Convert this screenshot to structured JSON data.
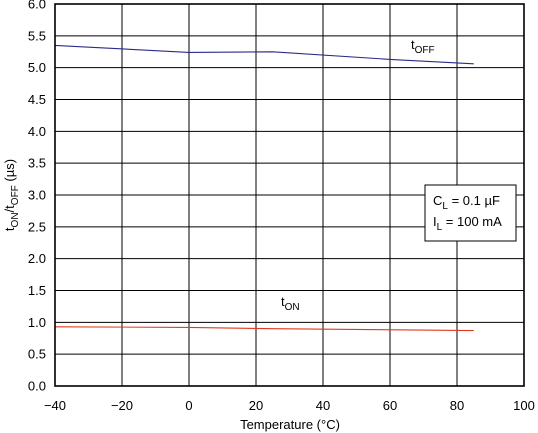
{
  "chart_data": {
    "type": "line",
    "xlabel": "Temperature  (°C)",
    "ylabel": {
      "parts": [
        {
          "text": "t",
          "sub": false
        },
        {
          "text": "ON",
          "sub": true
        },
        {
          "text": "/t",
          "sub": false
        },
        {
          "text": "OFF",
          "sub": true
        },
        {
          "text": " (µs)",
          "sub": false
        }
      ]
    },
    "xlim": [
      -40,
      100
    ],
    "ylim": [
      0.0,
      6.0
    ],
    "xticks": [
      -40,
      -20,
      0,
      20,
      40,
      60,
      80,
      100
    ],
    "xtick_labels": [
      "−40",
      "−20",
      "0",
      "20",
      "40",
      "60",
      "80",
      "100"
    ],
    "yticks": [
      0.0,
      0.5,
      1.0,
      1.5,
      2.0,
      2.5,
      3.0,
      3.5,
      4.0,
      4.5,
      5.0,
      5.5,
      6.0
    ],
    "ytick_labels": [
      "0.0",
      "0.5",
      "1.0",
      "1.5",
      "2.0",
      "2.5",
      "3.0",
      "3.5",
      "4.0",
      "4.5",
      "5.0",
      "5.5",
      "6.0"
    ],
    "grid": true,
    "series": [
      {
        "name_main": "t",
        "name_sub": "OFF",
        "color": "#2b2a8a",
        "x": [
          -40,
          0,
          25,
          60,
          85
        ],
        "y": [
          5.35,
          5.24,
          5.25,
          5.13,
          5.06
        ]
      },
      {
        "name_main": "t",
        "name_sub": "ON",
        "color": "#e03a1e",
        "x": [
          -40,
          0,
          25,
          85
        ],
        "y": [
          0.93,
          0.92,
          0.9,
          0.87
        ]
      }
    ],
    "conditions": {
      "line1_main": "C",
      "line1_sub": "L",
      "line1_rest": " = 0.1 µF",
      "line2_main": "I",
      "line2_sub": "L",
      "line2_rest": " = 100 mA"
    }
  }
}
